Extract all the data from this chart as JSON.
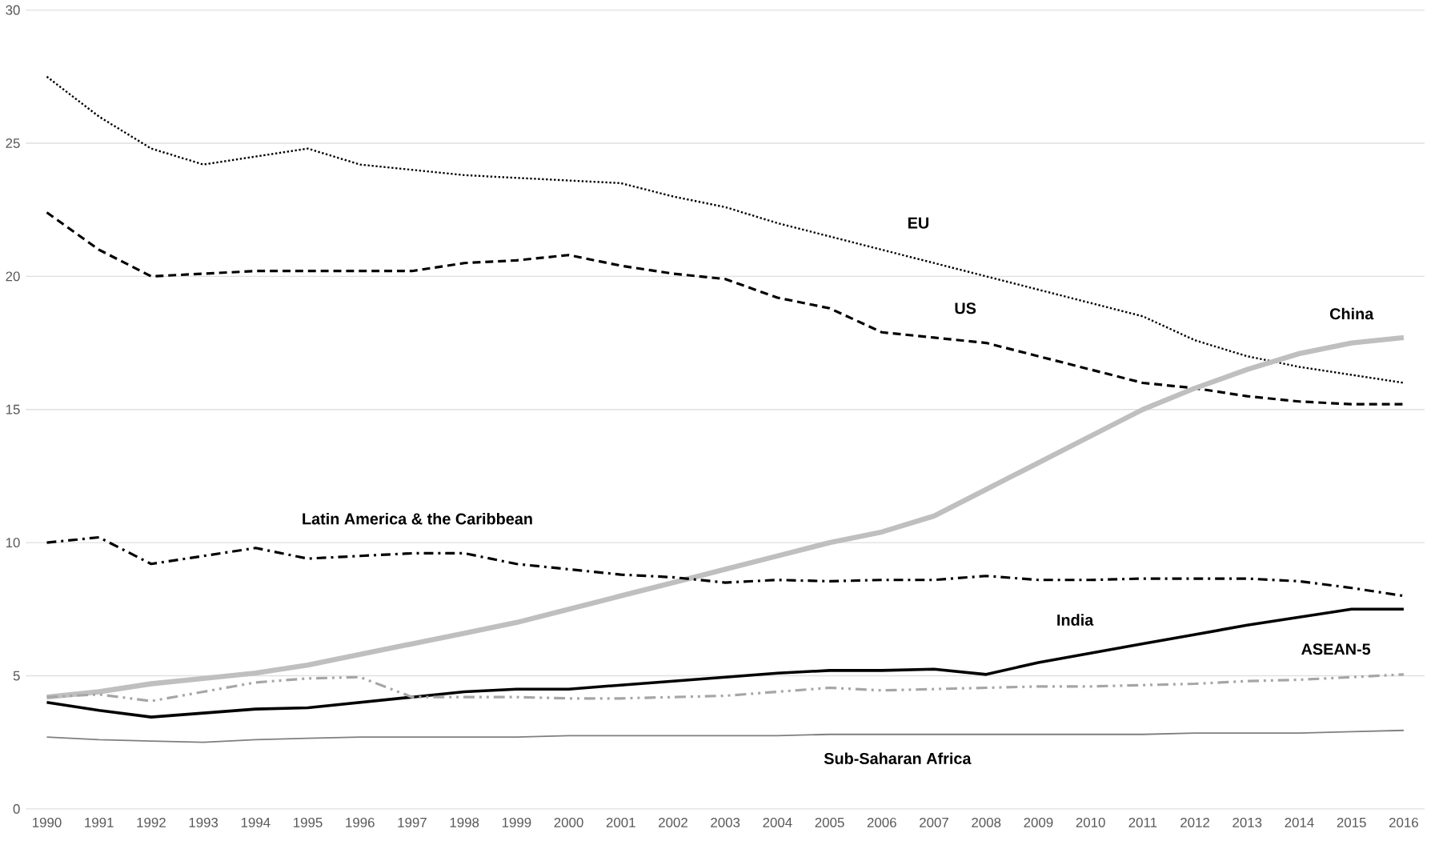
{
  "chart_data": {
    "type": "line",
    "categories": [
      "1990",
      "1991",
      "1992",
      "1993",
      "1994",
      "1995",
      "1996",
      "1997",
      "1998",
      "1999",
      "2000",
      "2001",
      "2002",
      "2003",
      "2004",
      "2005",
      "2006",
      "2007",
      "2008",
      "2009",
      "2010",
      "2011",
      "2012",
      "2013",
      "2014",
      "2015",
      "2016"
    ],
    "ylim": [
      0,
      30
    ],
    "yticks": [
      0,
      5,
      10,
      15,
      20,
      25,
      30
    ],
    "grid": "y",
    "series": [
      {
        "name": "EU",
        "color": "#000000",
        "line_style": "dotted",
        "values": [
          27.5,
          26,
          24.8,
          24.2,
          24.5,
          24.8,
          24.2,
          24,
          23.8,
          23.7,
          23.6,
          23.5,
          23,
          22.6,
          22,
          21.5,
          21,
          20.5,
          20,
          19.5,
          19,
          18.5,
          17.6,
          17,
          16.6,
          16.3,
          16.0
        ]
      },
      {
        "name": "US",
        "color": "#000000",
        "line_style": "dashed",
        "values": [
          22.4,
          21,
          20,
          20.1,
          20.2,
          20.2,
          20.2,
          20.2,
          20.5,
          20.6,
          20.8,
          20.4,
          20.1,
          19.9,
          19.2,
          18.8,
          17.9,
          17.7,
          17.5,
          17,
          16.5,
          16,
          15.8,
          15.5,
          15.3,
          15.2,
          15.2
        ]
      },
      {
        "name": "China",
        "color": "#bfbfbf",
        "line_style": "solid",
        "values": [
          4.2,
          4.4,
          4.7,
          4.9,
          5.1,
          5.4,
          5.8,
          6.2,
          6.6,
          7.0,
          7.5,
          8.0,
          8.5,
          9.0,
          9.5,
          10.0,
          10.4,
          11.0,
          12.0,
          13.0,
          14.0,
          15.0,
          15.8,
          16.5,
          17.1,
          17.5,
          17.7
        ]
      },
      {
        "name": "Latin America & the Caribbean",
        "color": "#000000",
        "line_style": "dashdot",
        "values": [
          10,
          10.2,
          9.2,
          9.5,
          9.8,
          9.4,
          9.5,
          9.6,
          9.6,
          9.2,
          9.0,
          8.8,
          8.7,
          8.5,
          8.6,
          8.55,
          8.6,
          8.6,
          8.75,
          8.6,
          8.6,
          8.65,
          8.65,
          8.65,
          8.55,
          8.3,
          8.0
        ]
      },
      {
        "name": "India",
        "color": "#000000",
        "line_style": "solid",
        "values": [
          4.0,
          3.7,
          3.45,
          3.6,
          3.75,
          3.8,
          4.0,
          4.2,
          4.4,
          4.5,
          4.5,
          4.65,
          4.8,
          4.95,
          5.1,
          5.2,
          5.2,
          5.25,
          5.05,
          5.5,
          5.85,
          6.2,
          6.55,
          6.9,
          7.2,
          7.5,
          7.5
        ]
      },
      {
        "name": "ASEAN-5",
        "color": "#a6a6a6",
        "line_style": "dashdotdot",
        "values": [
          4.2,
          4.3,
          4.05,
          4.4,
          4.75,
          4.9,
          4.95,
          4.2,
          4.2,
          4.2,
          4.15,
          4.15,
          4.2,
          4.25,
          4.4,
          4.55,
          4.45,
          4.5,
          4.55,
          4.6,
          4.6,
          4.65,
          4.7,
          4.8,
          4.85,
          4.95,
          5.05
        ]
      },
      {
        "name": "Sub-Saharan Africa",
        "color": "#7f7f7f",
        "line_style": "solid",
        "values": [
          2.7,
          2.6,
          2.55,
          2.5,
          2.6,
          2.65,
          2.7,
          2.7,
          2.7,
          2.7,
          2.75,
          2.75,
          2.75,
          2.75,
          2.75,
          2.8,
          2.8,
          2.8,
          2.8,
          2.8,
          2.8,
          2.8,
          2.85,
          2.85,
          2.85,
          2.9,
          2.95
        ]
      }
    ]
  }
}
